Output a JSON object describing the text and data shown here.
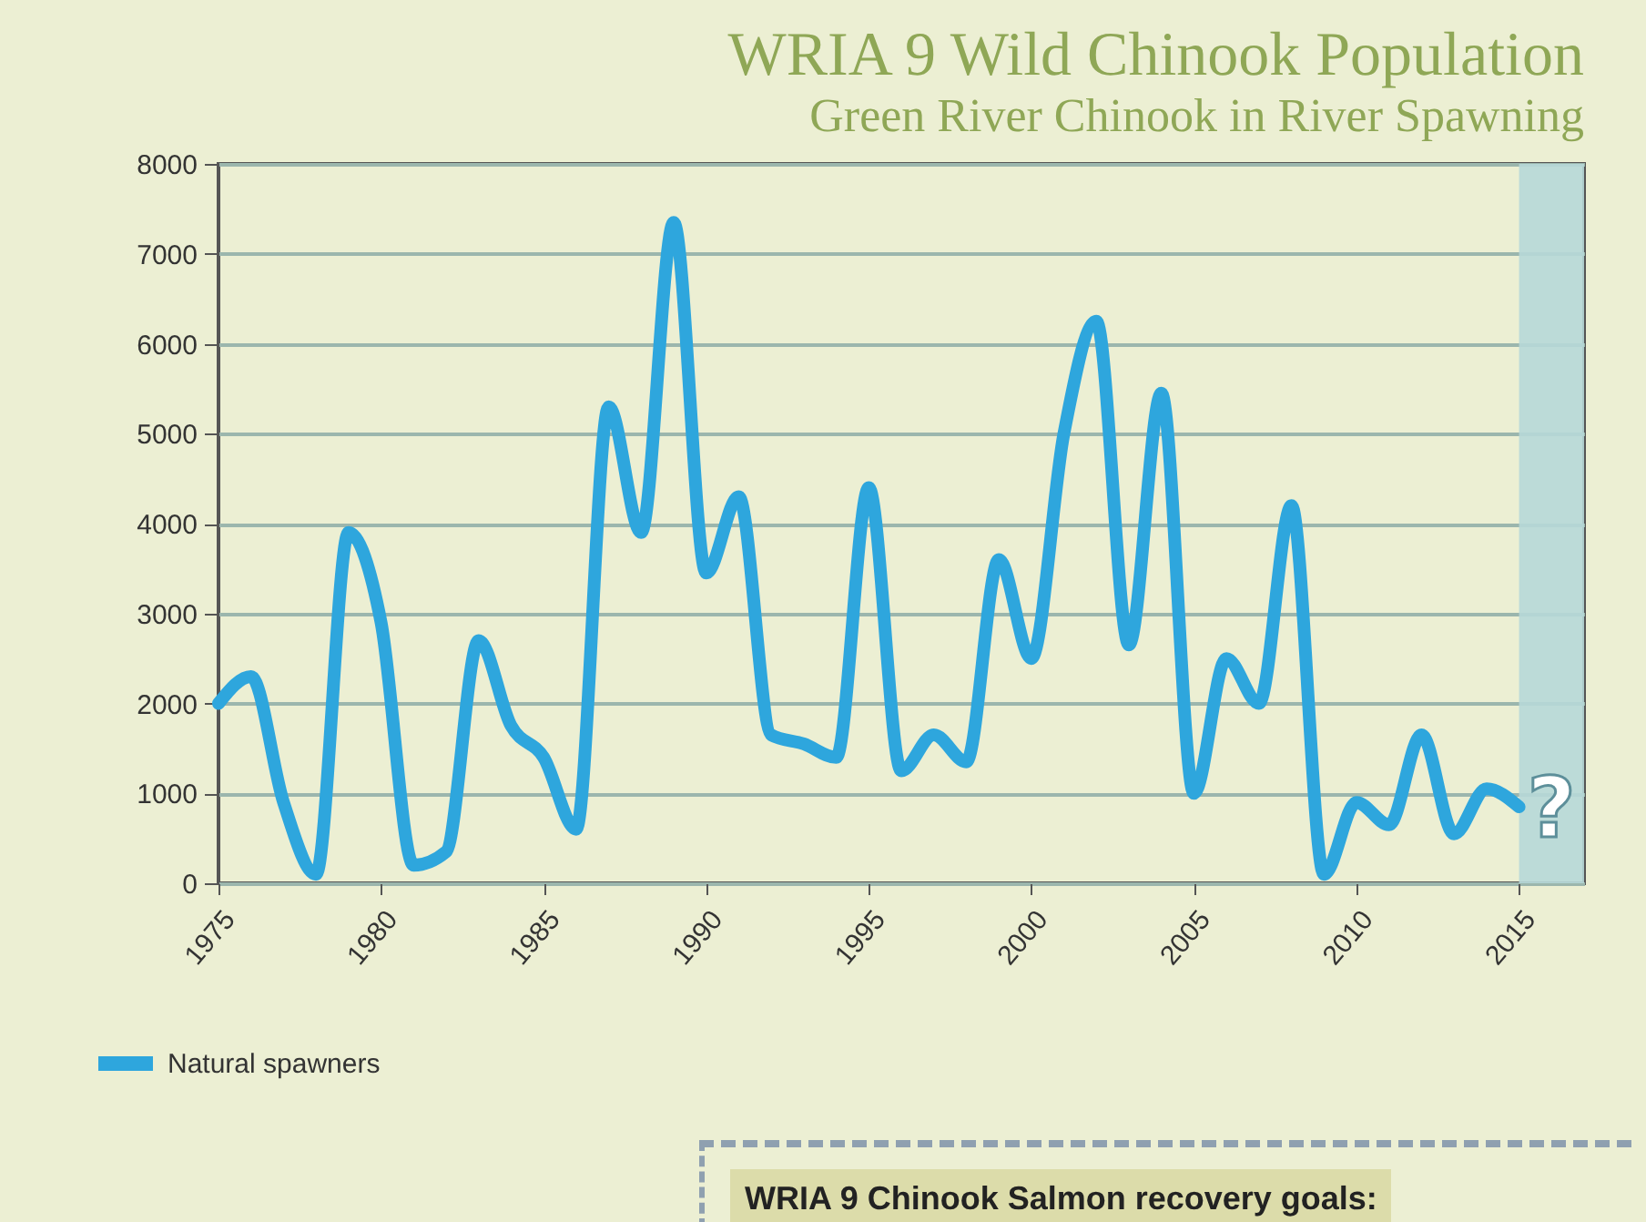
{
  "chart_data": {
    "type": "line",
    "title": "WRIA 9 Wild Chinook Population",
    "subtitle": "Green River Chinook in River Spawning",
    "x": [
      1975,
      1976,
      1977,
      1978,
      1979,
      1980,
      1981,
      1982,
      1983,
      1984,
      1985,
      1986,
      1987,
      1988,
      1989,
      1990,
      1991,
      1992,
      1993,
      1994,
      1995,
      1996,
      1997,
      1998,
      1999,
      2000,
      2001,
      2002,
      2003,
      2004,
      2005,
      2006,
      2007,
      2008,
      2009,
      2010,
      2011,
      2012,
      2013,
      2014,
      2015
    ],
    "series": [
      {
        "name": "Natural spawners",
        "color": "#2ea6dd",
        "values": [
          2000,
          2300,
          900,
          100,
          3900,
          2900,
          200,
          350,
          2700,
          1750,
          1400,
          600,
          5300,
          3900,
          7350,
          3450,
          4300,
          1650,
          1550,
          1400,
          4400,
          1250,
          1650,
          1350,
          3600,
          2500,
          5000,
          6250,
          2650,
          5450,
          1000,
          2500,
          2000,
          4200,
          100,
          900,
          650,
          1650,
          550,
          1050,
          850
        ]
      }
    ],
    "xlim": [
      1975,
      2017
    ],
    "xticks": [
      1975,
      1980,
      1985,
      1990,
      1995,
      2000,
      2005,
      2010,
      2015
    ],
    "ylim": [
      0,
      8000
    ],
    "yticks": [
      0,
      1000,
      2000,
      3000,
      4000,
      5000,
      6000,
      7000,
      8000
    ],
    "grid": "y",
    "legend": "bottom left",
    "line_style": "solid",
    "bands": [
      {
        "axis": "x",
        "from": 2015,
        "to": 2017,
        "label": "?",
        "color": "#b7d8d8"
      }
    ],
    "annotations": [
      "WRIA 9 Chinook Salmon recovery goals:"
    ]
  }
}
